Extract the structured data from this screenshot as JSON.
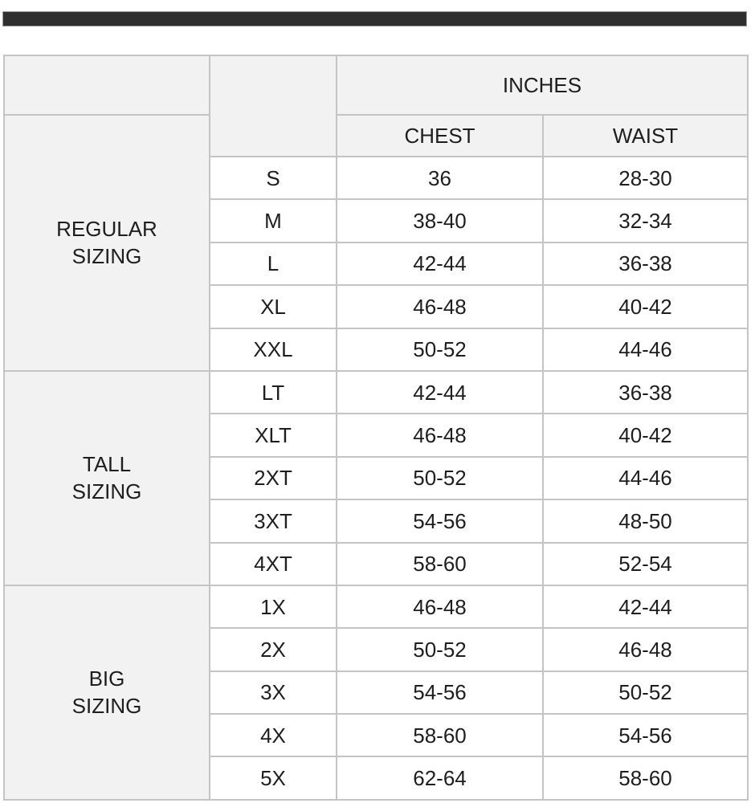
{
  "header": {
    "unit_label": "INCHES",
    "chest_label": "CHEST",
    "waist_label": "WAIST"
  },
  "colors": {
    "header_bg": "#f2f2f2",
    "border": "#c4c4c4",
    "top_bar": "#2f2f2f"
  },
  "groups": [
    {
      "label_line1": "REGULAR",
      "label_line2": "SIZING",
      "rows": [
        {
          "size": "S",
          "chest": "36",
          "waist": "28-30"
        },
        {
          "size": "M",
          "chest": "38-40",
          "waist": "32-34"
        },
        {
          "size": "L",
          "chest": "42-44",
          "waist": "36-38"
        },
        {
          "size": "XL",
          "chest": "46-48",
          "waist": "40-42"
        },
        {
          "size": "XXL",
          "chest": "50-52",
          "waist": "44-46"
        }
      ]
    },
    {
      "label_line1": "TALL",
      "label_line2": "SIZING",
      "rows": [
        {
          "size": "LT",
          "chest": "42-44",
          "waist": "36-38"
        },
        {
          "size": "XLT",
          "chest": "46-48",
          "waist": "40-42"
        },
        {
          "size": "2XT",
          "chest": "50-52",
          "waist": "44-46"
        },
        {
          "size": "3XT",
          "chest": "54-56",
          "waist": "48-50"
        },
        {
          "size": "4XT",
          "chest": "58-60",
          "waist": "52-54"
        }
      ]
    },
    {
      "label_line1": "BIG",
      "label_line2": "SIZING",
      "rows": [
        {
          "size": "1X",
          "chest": "46-48",
          "waist": "42-44"
        },
        {
          "size": "2X",
          "chest": "50-52",
          "waist": "46-48"
        },
        {
          "size": "3X",
          "chest": "54-56",
          "waist": "50-52"
        },
        {
          "size": "4X",
          "chest": "58-60",
          "waist": "54-56"
        },
        {
          "size": "5X",
          "chest": "62-64",
          "waist": "58-60"
        }
      ]
    }
  ]
}
